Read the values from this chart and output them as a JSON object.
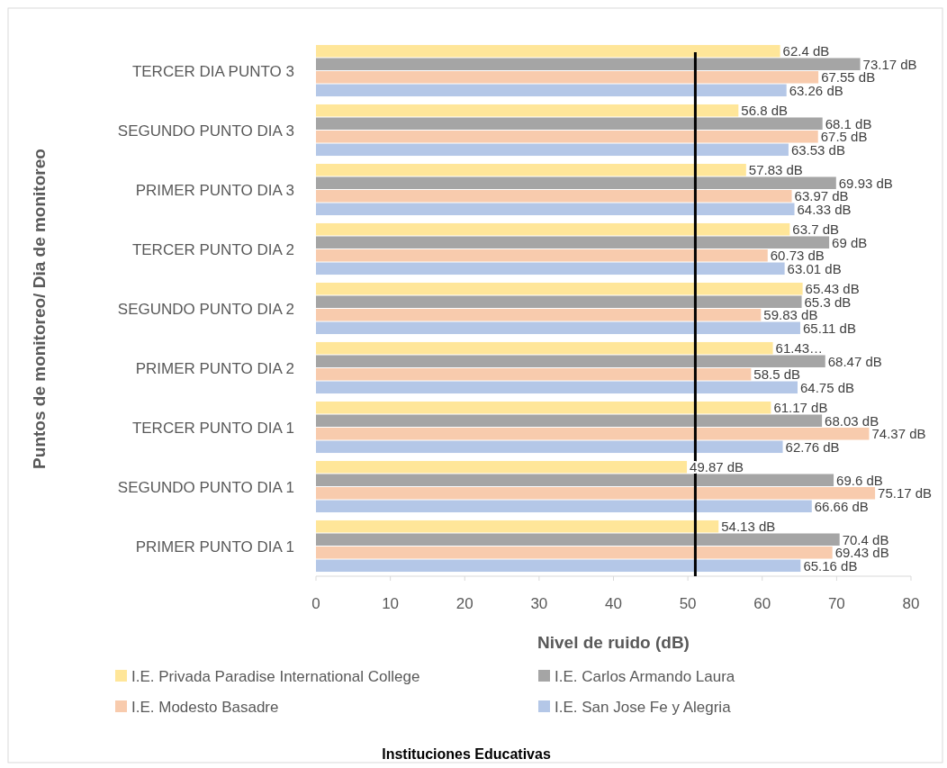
{
  "chart_data": {
    "type": "bar",
    "orientation": "horizontal",
    "xlabel": "Nivel de ruido (dB)",
    "ylabel": "Puntos de monitoreo/ Dia de monitoreo",
    "legend_title": "Instituciones Educativas",
    "legend": "bottom",
    "categories": [
      "TERCER DIA PUNTO 3",
      "SEGUNDO PUNTO DIA 3",
      "PRIMER PUNTO DIA 3",
      "TERCER PUNTO DIA 2",
      "SEGUNDO PUNTO DIA 2",
      "PRIMER PUNTO DIA 2",
      "TERCER PUNTO DIA 1",
      "SEGUNDO PUNTO DIA 1",
      "PRIMER PUNTO DIA 1"
    ],
    "xlim": [
      0,
      80
    ],
    "xticks": [
      0,
      10,
      20,
      30,
      40,
      50,
      60,
      70,
      80
    ],
    "ref_lines": [
      {
        "axis": "x",
        "value": 51,
        "color": "#000000"
      }
    ],
    "series": [
      {
        "name": "I.E. Privada Paradise International College",
        "color": "#ffe699",
        "values": [
          62.4,
          56.8,
          57.83,
          63.7,
          65.43,
          61.43,
          61.17,
          49.87,
          54.13
        ],
        "value_labels": [
          "62.4 dB",
          "56.8 dB",
          "57.83 dB",
          "63.7 dB",
          "65.43 dB",
          "61.43…",
          "61.17 dB",
          "49.87 dB",
          "54.13 dB"
        ]
      },
      {
        "name": "I.E. Carlos Armando Laura",
        "color": "#a5a5a5",
        "values": [
          73.17,
          68.1,
          69.93,
          69,
          65.3,
          68.47,
          68.03,
          69.6,
          70.4
        ],
        "value_labels": [
          "73.17 dB",
          "68.1 dB",
          "69.93 dB",
          "69 dB",
          "65.3 dB",
          "68.47 dB",
          "68.03 dB",
          "69.6 dB",
          "70.4 dB"
        ]
      },
      {
        "name": "I.E. Modesto Basadre",
        "color": "#f8cbad",
        "values": [
          67.55,
          67.5,
          63.97,
          60.73,
          59.83,
          58.5,
          74.37,
          75.17,
          69.43
        ],
        "value_labels": [
          "67.55 dB",
          "67.5 dB",
          "63.97 dB",
          "60.73 dB",
          "59.83 dB",
          "58.5 dB",
          "74.37 dB",
          "75.17 dB",
          "69.43 dB"
        ]
      },
      {
        "name": "I.E. San Jose Fe y Alegria",
        "color": "#b4c7e7",
        "values": [
          63.26,
          63.53,
          64.33,
          63.01,
          65.11,
          64.75,
          62.76,
          66.66,
          65.16
        ],
        "value_labels": [
          "63.26 dB",
          "63.53 dB",
          "64.33 dB",
          "63.01 dB",
          "65.11 dB",
          "64.75 dB",
          "62.76 dB",
          "66.66 dB",
          "65.16 dB"
        ]
      }
    ]
  }
}
